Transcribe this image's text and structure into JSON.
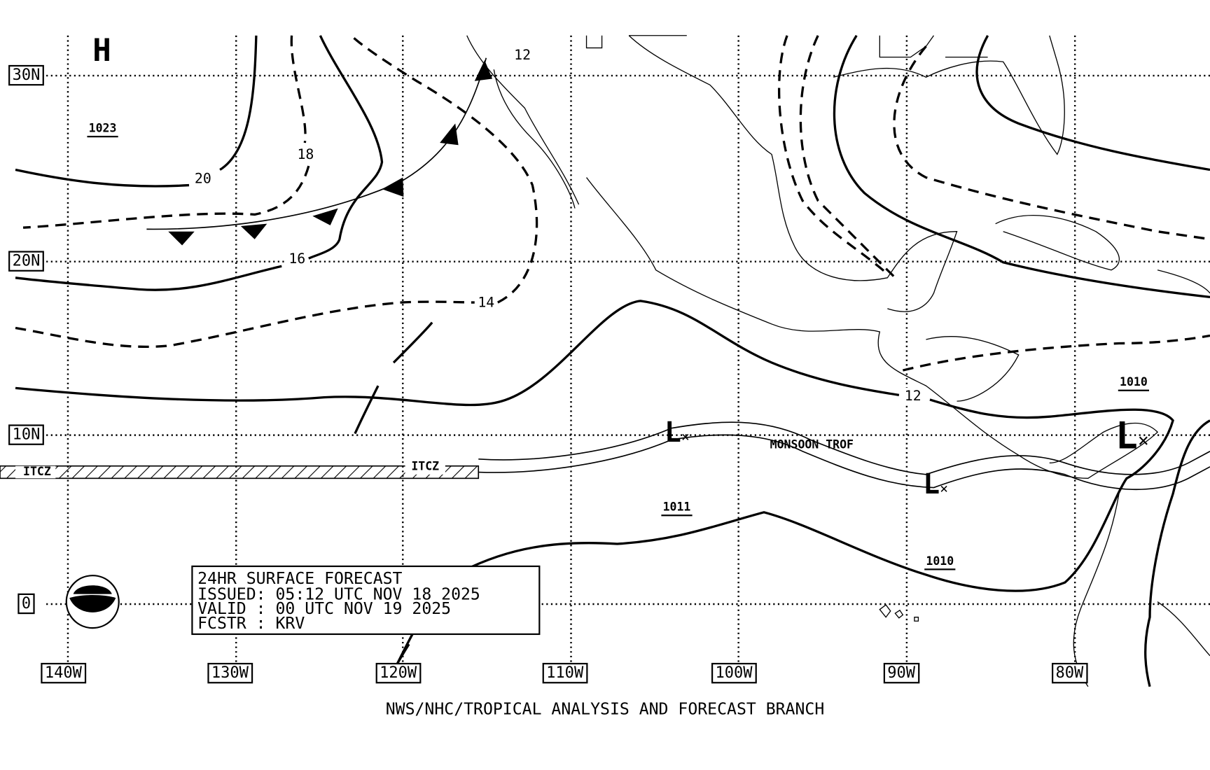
{
  "map": {
    "lat_labels": [
      "30N",
      "20N",
      "10N",
      "0"
    ],
    "lon_labels": [
      "140W",
      "130W",
      "120W",
      "110W",
      "100W",
      "90W",
      "80W"
    ],
    "isobar_labels": [
      "12",
      "20",
      "18",
      "16",
      "14",
      "12"
    ],
    "pressure_values": [
      "1023",
      "1010",
      "1011",
      "1010"
    ],
    "centers": [
      "H",
      "L",
      "L",
      "L"
    ],
    "features": [
      "ITCZ",
      "ITCZ",
      "MONSOON TROF"
    ],
    "info_box": [
      "24HR SURFACE FORECAST",
      "ISSUED: 05:12 UTC NOV 18 2025",
      "VALID : 00 UTC NOV 19 2025",
      "FCSTR : KRV"
    ],
    "footer": "NWS/NHC/TROPICAL ANALYSIS AND FORECAST BRANCH"
  }
}
